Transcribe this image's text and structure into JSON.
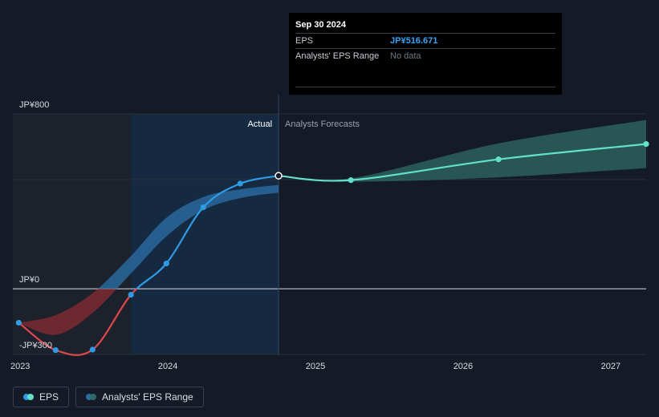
{
  "tooltip": {
    "date": "Sep 30 2024",
    "eps_label": "EPS",
    "eps_value": "JP¥516.671",
    "range_label": "Analysts' EPS Range",
    "range_value": "No data"
  },
  "regions": {
    "actual": "Actual",
    "forecast": "Analysts Forecasts"
  },
  "legend": {
    "eps": "EPS",
    "range": "Analysts' EPS Range"
  },
  "colors": {
    "eps_positive": "#2f9ae6",
    "eps_negative": "#e0474c",
    "forecast": "#63e0cc",
    "band_actual": "#2b6da3",
    "band_negative": "#8a2c33",
    "band_forecast": "#2e6b66",
    "background": "#151b26"
  },
  "chart_data": {
    "type": "line",
    "currency": "JP¥",
    "y_ticks": [
      {
        "label": "JP¥800",
        "value": 800
      },
      {
        "label": "JP¥0",
        "value": 0
      },
      {
        "label": "-JP¥300",
        "value": -300
      }
    ],
    "x_ticks": [
      "2023",
      "2024",
      "2025",
      "2026",
      "2027"
    ],
    "xlim": [
      2022.95,
      2027.24
    ],
    "ylim": [
      -300,
      800
    ],
    "series": [
      {
        "name": "EPS",
        "points": [
          {
            "x": 2022.99,
            "y": -155
          },
          {
            "x": 2023.24,
            "y": -280
          },
          {
            "x": 2023.49,
            "y": -278
          },
          {
            "x": 2023.75,
            "y": -27
          },
          {
            "x": 2023.99,
            "y": 116
          },
          {
            "x": 2024.24,
            "y": 373
          },
          {
            "x": 2024.49,
            "y": 481
          },
          {
            "x": 2024.75,
            "y": 517
          }
        ]
      },
      {
        "name": "Analysts Forecasts",
        "points": [
          {
            "x": 2024.75,
            "y": 517
          },
          {
            "x": 2025.24,
            "y": 497
          },
          {
            "x": 2026.24,
            "y": 592
          },
          {
            "x": 2027.24,
            "y": 662
          }
        ]
      }
    ],
    "bands": [
      {
        "name": "Analysts' EPS Range (historical)",
        "points": [
          {
            "x": 2022.99,
            "low": -155,
            "high": -155
          },
          {
            "x": 2023.24,
            "low": -210,
            "high": -120
          },
          {
            "x": 2023.49,
            "low": -110,
            "high": -20
          },
          {
            "x": 2023.75,
            "low": 70,
            "high": 150
          },
          {
            "x": 2023.99,
            "low": 240,
            "high": 325
          },
          {
            "x": 2024.24,
            "low": 360,
            "high": 420
          },
          {
            "x": 2024.49,
            "low": 415,
            "high": 455
          },
          {
            "x": 2024.75,
            "low": 440,
            "high": 475
          }
        ]
      },
      {
        "name": "Analysts' EPS Range (forecast)",
        "points": [
          {
            "x": 2024.75,
            "low": 517,
            "high": 517
          },
          {
            "x": 2025.24,
            "low": 490,
            "high": 505
          },
          {
            "x": 2026.24,
            "low": 510,
            "high": 665
          },
          {
            "x": 2027.24,
            "low": 552,
            "high": 772
          }
        ]
      }
    ],
    "actual_region_end": 2024.75,
    "highlight_start": 2023.75,
    "legend_placement": "bottom-left",
    "grid": true
  }
}
